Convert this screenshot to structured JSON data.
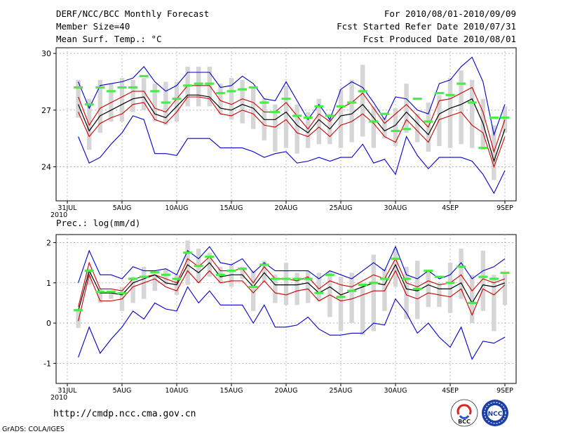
{
  "header": {
    "left": [
      "DERF/NCC/BCC Monthly Forecast",
      "Member Size=40",
      "Mean Surf. Temp.: °C"
    ],
    "right": [
      "For 2010/08/01-2010/09/09",
      "Fcst Started Refer Date 2010/07/31",
      "Fcst Produced Date 2010/08/01"
    ]
  },
  "footer": {
    "url": "http://cmdp.ncc.cma.gov.cn",
    "credit": "GrADS: COLA/IGES"
  },
  "logos": {
    "left": "BCC",
    "right": "NCC"
  },
  "colors": {
    "ensemble_mean": "#000000",
    "spread": "#cc0000",
    "extremes": "#0000cc",
    "observed": "#44ee44",
    "box": "#d6d6d6"
  },
  "chart_data": [
    {
      "type": "line",
      "title": "Mean Surf. Temp.: °C",
      "x_tick_labels": [
        "31JUL\n2010",
        "5AUG",
        "10AUG",
        "15AUG",
        "20AUG",
        "25AUG",
        "30AUG",
        "4SEP",
        "9SEP"
      ],
      "x_tick_days": [
        0,
        5,
        10,
        15,
        20,
        25,
        30,
        35,
        40
      ],
      "y_ticks": [
        24,
        27,
        30
      ],
      "ylim": [
        22.2,
        30.3
      ],
      "days": [
        1,
        2,
        3,
        4,
        5,
        6,
        7,
        8,
        9,
        10,
        11,
        12,
        13,
        14,
        15,
        16,
        17,
        18,
        19,
        20,
        21,
        22,
        23,
        24,
        25,
        26,
        27,
        28,
        29,
        30,
        31,
        32,
        33,
        34,
        35,
        36,
        37,
        38,
        39,
        40
      ],
      "series": [
        {
          "name": "max",
          "values": [
            28.5,
            27.1,
            28.3,
            28.4,
            28.5,
            28.7,
            29.3,
            28.5,
            28.0,
            28.3,
            29.0,
            29.0,
            29.0,
            28.2,
            28.3,
            28.8,
            28.4,
            27.6,
            27.5,
            28.5,
            27.5,
            26.5,
            27.3,
            26.5,
            28.1,
            28.5,
            28.2,
            27.4,
            26.5,
            27.7,
            27.6,
            27.0,
            26.8,
            28.4,
            28.6,
            29.3,
            29.8,
            28.5,
            25.7,
            27.3
          ]
        },
        {
          "name": "upper",
          "values": [
            27.7,
            26.2,
            27.1,
            27.4,
            27.7,
            28.0,
            28.0,
            27.1,
            26.9,
            27.6,
            28.3,
            28.3,
            28.3,
            27.5,
            27.3,
            27.6,
            27.4,
            26.9,
            26.9,
            27.4,
            26.7,
            26.0,
            26.8,
            26.4,
            27.1,
            27.4,
            27.9,
            27.1,
            26.3,
            26.8,
            27.3,
            26.7,
            26.1,
            27.5,
            27.6,
            27.9,
            28.2,
            26.9,
            24.8,
            26.5
          ]
        },
        {
          "name": "mean",
          "values": [
            27.3,
            25.9,
            26.7,
            27.0,
            27.3,
            27.6,
            27.7,
            26.8,
            26.6,
            27.2,
            27.8,
            27.8,
            27.7,
            27.1,
            27.0,
            27.3,
            27.1,
            26.5,
            26.5,
            26.9,
            26.2,
            25.8,
            26.5,
            26.0,
            26.7,
            26.8,
            27.3,
            26.6,
            25.9,
            26.2,
            26.9,
            26.3,
            25.7,
            26.8,
            27.1,
            27.3,
            27.6,
            26.3,
            24.3,
            26.0
          ]
        },
        {
          "name": "lower",
          "values": [
            26.9,
            25.6,
            26.3,
            26.6,
            26.8,
            27.3,
            27.4,
            26.5,
            26.3,
            26.9,
            27.7,
            27.7,
            27.6,
            26.8,
            26.7,
            27.0,
            26.8,
            26.2,
            26.1,
            26.5,
            25.8,
            25.6,
            26.1,
            25.6,
            26.2,
            26.4,
            26.8,
            26.3,
            25.6,
            25.3,
            26.5,
            25.9,
            25.3,
            26.5,
            26.7,
            26.9,
            26.2,
            25.8,
            24.0,
            25.6
          ]
        },
        {
          "name": "min",
          "values": [
            25.6,
            24.2,
            24.5,
            25.2,
            25.8,
            26.7,
            26.5,
            24.7,
            24.7,
            24.6,
            25.5,
            25.5,
            25.5,
            25.0,
            25.0,
            25.0,
            24.8,
            24.5,
            24.7,
            24.8,
            24.2,
            24.3,
            24.5,
            24.3,
            24.5,
            24.5,
            25.2,
            24.2,
            24.4,
            23.6,
            25.6,
            24.6,
            23.9,
            24.5,
            24.5,
            24.5,
            24.3,
            23.6,
            22.6,
            23.8
          ]
        },
        {
          "name": "observed",
          "values": [
            28.2,
            27.3,
            28.2,
            28.0,
            28.2,
            28.2,
            28.8,
            28.0,
            27.4,
            27.6,
            28.3,
            28.4,
            28.4,
            27.9,
            28.0,
            28.1,
            28.2,
            27.4,
            26.9,
            27.6,
            26.7,
            26.6,
            27.2,
            26.7,
            27.2,
            27.4,
            28.0,
            26.4,
            26.8,
            25.9,
            26.0,
            27.6,
            26.4,
            27.9,
            27.8,
            28.4,
            27.4,
            25.0,
            26.6,
            26.6
          ]
        },
        {
          "name": "box_high",
          "values": [
            28.6,
            27.6,
            28.6,
            28.4,
            28.7,
            28.6,
            28.7,
            28.4,
            28.5,
            28.5,
            29.3,
            29.3,
            29.3,
            28.4,
            28.7,
            28.6,
            28.2,
            27.6,
            27.3,
            28.3,
            27.3,
            26.9,
            27.6,
            26.8,
            28.1,
            28.6,
            29.4,
            27.2,
            26.6,
            27.1,
            28.4,
            26.8,
            27.4,
            27.8,
            28.7,
            29.1,
            28.6,
            27.6,
            26.2,
            27.2
          ]
        },
        {
          "name": "box_low",
          "values": [
            26.6,
            24.9,
            25.8,
            26.4,
            26.4,
            26.9,
            27.0,
            26.4,
            26.2,
            26.4,
            27.2,
            27.2,
            27.2,
            26.8,
            26.5,
            26.3,
            26.0,
            25.4,
            24.8,
            25.0,
            24.7,
            25.0,
            25.2,
            25.2,
            25.0,
            25.3,
            25.6,
            25.0,
            25.5,
            25.1,
            25.8,
            25.3,
            24.8,
            25.1,
            25.0,
            25.2,
            25.0,
            24.9,
            23.3,
            25.8
          ]
        }
      ]
    },
    {
      "type": "line",
      "title": "Prec.: log(mm/d)",
      "x_tick_labels": [
        "31JUL\n2010",
        "5AUG",
        "10AUG",
        "15AUG",
        "20AUG",
        "25AUG",
        "30AUG",
        "4SEP",
        "9SEP"
      ],
      "x_tick_days": [
        0,
        5,
        10,
        15,
        20,
        25,
        30,
        35,
        40
      ],
      "y_ticks": [
        -1,
        0,
        1,
        2
      ],
      "ylim": [
        -1.5,
        2.2
      ],
      "days": [
        1,
        2,
        3,
        4,
        5,
        6,
        7,
        8,
        9,
        10,
        11,
        12,
        13,
        14,
        15,
        16,
        17,
        18,
        19,
        20,
        21,
        22,
        23,
        24,
        25,
        26,
        27,
        28,
        29,
        30,
        31,
        32,
        33,
        34,
        35,
        36,
        37,
        38,
        39,
        40
      ],
      "series": [
        {
          "name": "max",
          "values": [
            1.0,
            1.8,
            1.2,
            1.2,
            1.1,
            1.4,
            1.3,
            1.3,
            1.35,
            1.2,
            1.8,
            1.6,
            1.9,
            1.5,
            1.45,
            1.6,
            1.25,
            1.5,
            1.3,
            1.3,
            1.3,
            1.3,
            1.1,
            1.3,
            1.2,
            1.1,
            1.3,
            1.5,
            1.3,
            1.9,
            1.2,
            1.1,
            1.3,
            1.1,
            1.2,
            1.5,
            1.1,
            1.3,
            1.4,
            1.6
          ]
        },
        {
          "name": "upper",
          "values": [
            0.4,
            1.5,
            0.85,
            0.85,
            0.8,
            1.1,
            1.15,
            1.2,
            1.1,
            1.0,
            1.6,
            1.4,
            1.65,
            1.3,
            1.3,
            1.35,
            1.0,
            1.4,
            1.1,
            1.1,
            1.05,
            1.15,
            0.85,
            1.05,
            0.95,
            0.9,
            1.05,
            1.2,
            1.1,
            1.6,
            1.0,
            0.9,
            1.05,
            0.95,
            1.0,
            1.2,
            0.8,
            1.1,
            1.0,
            1.1
          ]
        },
        {
          "name": "mean",
          "values": [
            0.3,
            1.3,
            0.75,
            0.75,
            0.7,
            1.0,
            1.1,
            1.2,
            1.0,
            0.95,
            1.45,
            1.25,
            1.5,
            1.15,
            1.2,
            1.2,
            0.9,
            1.25,
            0.95,
            0.95,
            0.95,
            1.0,
            0.75,
            0.9,
            0.7,
            0.8,
            0.9,
            1.0,
            0.95,
            1.45,
            0.85,
            0.8,
            0.95,
            0.85,
            0.85,
            1.0,
            0.5,
            0.95,
            0.9,
            1.0
          ]
        },
        {
          "name": "lower",
          "values": [
            0.05,
            1.2,
            0.55,
            0.55,
            0.6,
            0.9,
            1.0,
            1.1,
            0.9,
            0.8,
            1.3,
            1.0,
            1.3,
            1.0,
            1.05,
            1.05,
            0.75,
            1.05,
            0.75,
            0.7,
            0.8,
            0.85,
            0.55,
            0.7,
            0.55,
            0.6,
            0.7,
            0.8,
            0.8,
            1.3,
            0.7,
            0.6,
            0.75,
            0.7,
            0.65,
            0.85,
            0.2,
            0.85,
            0.7,
            0.95
          ]
        },
        {
          "name": "min",
          "values": [
            -0.85,
            -0.1,
            -0.75,
            -0.4,
            -0.1,
            0.3,
            0.1,
            0.5,
            0.35,
            0.3,
            0.9,
            0.5,
            0.8,
            0.45,
            0.45,
            0.45,
            0.0,
            0.45,
            -0.1,
            -0.1,
            -0.05,
            0.15,
            -0.15,
            -0.3,
            -0.3,
            -0.25,
            -0.25,
            0.0,
            -0.05,
            0.6,
            0.25,
            -0.25,
            0.0,
            -0.35,
            -0.6,
            -0.1,
            -0.9,
            -0.45,
            -0.5,
            -0.35
          ]
        },
        {
          "name": "observed",
          "values": [
            0.32,
            1.3,
            0.78,
            0.78,
            0.74,
            1.1,
            1.15,
            1.26,
            1.2,
            1.1,
            1.75,
            1.42,
            1.65,
            1.2,
            1.3,
            1.35,
            0.9,
            1.45,
            1.1,
            1.1,
            1.1,
            1.1,
            0.75,
            1.2,
            0.65,
            0.8,
            0.95,
            1.0,
            1.1,
            1.6,
            1.1,
            0.85,
            1.3,
            1.15,
            1.0,
            1.4,
            0.5,
            1.15,
            1.1,
            1.25
          ]
        },
        {
          "name": "box_high",
          "values": [
            0.3,
            1.35,
            0.85,
            0.8,
            0.9,
            1.15,
            1.4,
            1.2,
            1.35,
            1.2,
            2.05,
            1.85,
            1.75,
            1.4,
            1.45,
            1.4,
            1.3,
            1.55,
            1.2,
            1.5,
            1.25,
            1.3,
            1.25,
            1.3,
            1.15,
            1.25,
            1.0,
            1.7,
            1.35,
            1.85,
            1.4,
            1.55,
            1.3,
            1.0,
            1.5,
            1.85,
            1.2,
            1.8,
            1.2,
            1.25
          ]
        },
        {
          "name": "box_low",
          "values": [
            -0.12,
            0.95,
            0.5,
            0.6,
            0.3,
            0.5,
            0.6,
            0.8,
            0.95,
            0.7,
            0.95,
            1.0,
            1.15,
            1.0,
            0.9,
            1.1,
            0.3,
            1.0,
            0.5,
            0.45,
            0.45,
            0.5,
            0.55,
            0.15,
            -0.2,
            0.0,
            -0.3,
            -0.2,
            0.3,
            0.9,
            0.1,
            0.1,
            0.4,
            0.4,
            0.25,
            0.6,
            0.0,
            0.3,
            -0.2,
            0.45
          ]
        }
      ]
    }
  ]
}
